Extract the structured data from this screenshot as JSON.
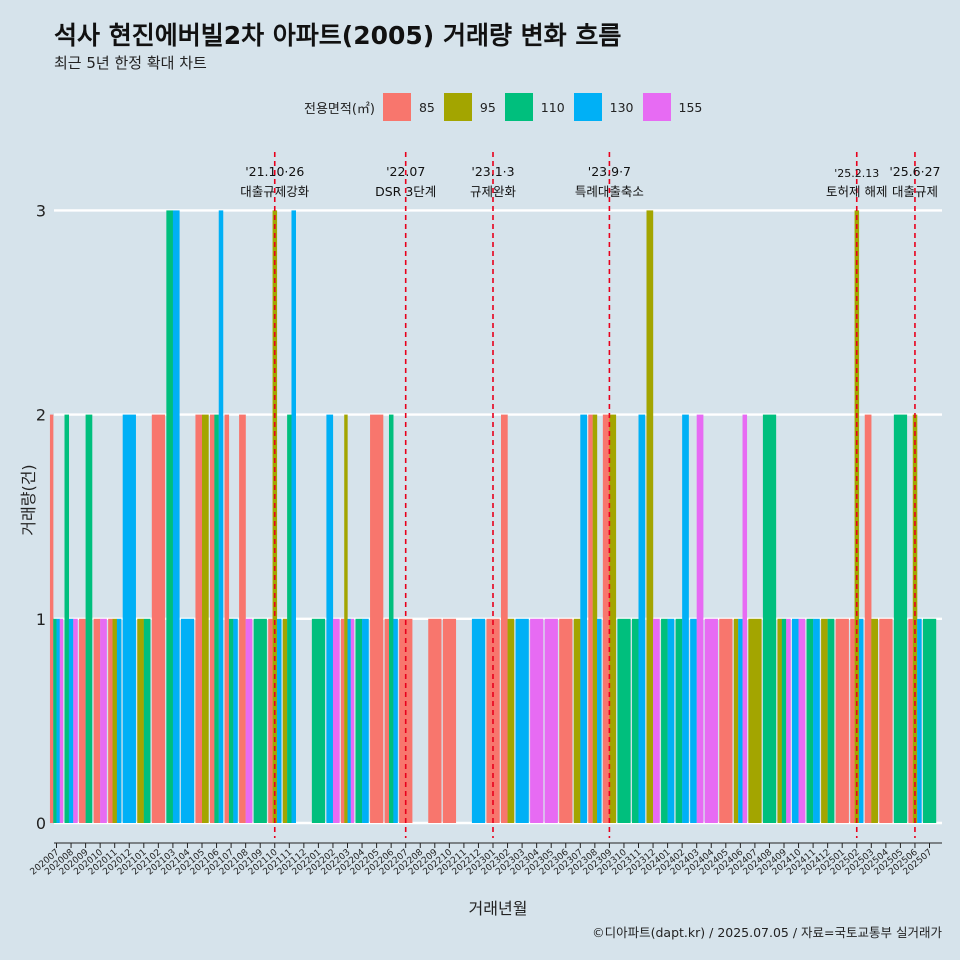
{
  "title": "석사 현진에버빌2차 아파트(2005) 거래량 변화 흐름",
  "subtitle": "최근 5년 한정 확대 차트",
  "caption": "©디아파트(dapt.kr) / 2025.07.05 / 자료=국토교통부 실거래가",
  "legend_title": "전용면적(㎡)",
  "colors": {
    "85": "#f8766d",
    "95": "#a3a500",
    "110": "#00bf7d",
    "130": "#00b0f6",
    "155": "#e76bf3",
    "refline": "#e8001c",
    "grid": "#ffffff"
  },
  "chart_data": {
    "type": "bar",
    "title": "석사 현진에버빌2차 아파트(2005) 거래량 변화 흐름",
    "xlabel": "거래년월",
    "ylabel": "거래량(건)",
    "ylim": [
      0,
      3
    ],
    "yticks": [
      0,
      1,
      2,
      3
    ],
    "months": [
      "202007",
      "202008",
      "202009",
      "202010",
      "202011",
      "202012",
      "202101",
      "202102",
      "202103",
      "202104",
      "202105",
      "202106",
      "202107",
      "202108",
      "202109",
      "202110",
      "202111",
      "202112",
      "202201",
      "202202",
      "202203",
      "202204",
      "202205",
      "202206",
      "202207",
      "202208",
      "202209",
      "202210",
      "202211",
      "202212",
      "202301",
      "202302",
      "202303",
      "202304",
      "202305",
      "202306",
      "202307",
      "202308",
      "202309",
      "202310",
      "202311",
      "202312",
      "202401",
      "202402",
      "202403",
      "202404",
      "202405",
      "202406",
      "202407",
      "202408",
      "202409",
      "202410",
      "202411",
      "202412",
      "202501",
      "202502",
      "202503",
      "202504",
      "202505",
      "202506",
      "202507"
    ],
    "series": [
      {
        "name": "85",
        "data": {
          "202007": 2,
          "202009": 1,
          "202010": 1,
          "202011": 1,
          "202102": 2,
          "202105": 2,
          "202106": 2,
          "202107": 2,
          "202108": 2,
          "202110": 1,
          "202203": 1,
          "202205": 2,
          "202206": 1,
          "202207": 1,
          "202209": 1,
          "202210": 1,
          "202301": 1,
          "202302": 2,
          "202306": 1,
          "202308": 2,
          "202309": 2,
          "202405": 1,
          "202501": 1,
          "202502": 1,
          "202503": 2,
          "202504": 1,
          "202506": 1
        }
      },
      {
        "name": "95",
        "data": {
          "202011": 1,
          "202101": 1,
          "202105": 2,
          "202110": 3,
          "202111": 1,
          "202203": 2,
          "202302": 1,
          "202307": 1,
          "202308": 2,
          "202309": 2,
          "202312": 3,
          "202406": 1,
          "202407": 1,
          "202409": 1,
          "202412": 1,
          "202502": 3,
          "202503": 1,
          "202506": 2
        }
      },
      {
        "name": "110",
        "data": {
          "202007": 1,
          "202008": 2,
          "202009": 2,
          "202101": 1,
          "202103": 3,
          "202106": 2,
          "202107": 1,
          "202109": 1,
          "202111": 2,
          "202201": 1,
          "202204": 1,
          "202206": 2,
          "202310": 1,
          "202311": 1,
          "202401": 1,
          "202402": 1,
          "202408": 2,
          "202409": 1,
          "202411": 1,
          "202412": 1,
          "202505": 2,
          "202507": 1
        }
      },
      {
        "name": "130",
        "data": {
          "202007": 1,
          "202008": 1,
          "202011": 1,
          "202012": 2,
          "202103": 3,
          "202104": 1,
          "202106": 3,
          "202107": 1,
          "202110": 1,
          "202111": 3,
          "202202": 2,
          "202203": 1,
          "202204": 1,
          "202206": 1,
          "202212": 1,
          "202303": 1,
          "202307": 2,
          "202308": 1,
          "202311": 2,
          "202401": 1,
          "202402": 2,
          "202403": 1,
          "202406": 1,
          "202410": 1,
          "202411": 1,
          "202502": 1,
          "202506": 1
        }
      },
      {
        "name": "155",
        "data": {
          "202007": 1,
          "202008": 1,
          "202010": 1,
          "202108": 1,
          "202202": 1,
          "202203": 1,
          "202304": 1,
          "202305": 1,
          "202312": 1,
          "202403": 2,
          "202404": 1,
          "202406": 2,
          "202409": 1,
          "202410": 1
        }
      }
    ],
    "annotations": [
      {
        "month": "202110",
        "date": "'21.10·26",
        "label": "대출규제강화"
      },
      {
        "month": "202207",
        "date": "'22.07",
        "label": "DSR 3단계"
      },
      {
        "month": "202301",
        "date": "'23.1·3",
        "label": "규제완화"
      },
      {
        "month": "202309",
        "date": "'23.9·7",
        "label": "특례대출축소"
      },
      {
        "month": "202502",
        "date": "'25.2.13",
        "label": "토허제 해제"
      },
      {
        "month": "202506",
        "date": "'25.6·27",
        "label": "대출규제"
      }
    ]
  }
}
